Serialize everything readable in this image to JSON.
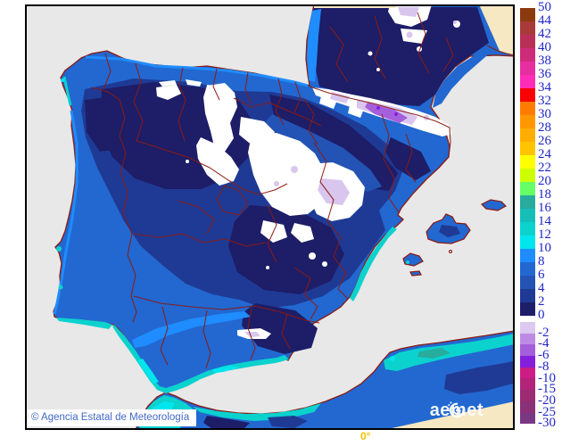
{
  "map": {
    "copyright": "© Agencia Estatal de Meteorología",
    "logo_text": "aemet",
    "longitude_label": "0°"
  },
  "colors": {
    "frame": "#000000",
    "sea": "#E8E8E8",
    "no_data": "#F6E8C2",
    "boundary": "#8C1A10",
    "scale_label": "#2025C8",
    "copyright_text": "#4169C8",
    "copyright_bg": "#FFFFFF",
    "lon_label": "#F0C000",
    "logo_white": "#FFFFFF",
    "t0_2": "#1D1D68",
    "t2_4": "#1F3A94",
    "t4_6": "#2353B4",
    "t6_8": "#2268D0",
    "t8_10": "#1F8CFF",
    "t10_12": "#00E6EE",
    "t12_14": "#0CD2CE",
    "t14_16": "#16BEBA",
    "t16_18": "#28AC9E",
    "m2_4": "#D9C6EE",
    "m4_6": "#BC8BE4",
    "m6_8": "#A55EDC",
    "m8_10": "#8420DC"
  },
  "colorbar": {
    "upper_labels": [
      "50",
      "44",
      "42",
      "40",
      "38",
      "36",
      "34",
      "32",
      "30",
      "28",
      "26",
      "24",
      "22",
      "20",
      "18",
      "16",
      "14",
      "12",
      "10",
      "8",
      "6",
      "4",
      "2",
      "0"
    ],
    "upper_colors": [
      "#8B3A0E",
      "#A83A3A",
      "#B83058",
      "#CC2C7A",
      "#E62EA0",
      "#FF2CB8",
      "#FA0000",
      "#FF7C00",
      "#FF9800",
      "#FFAE00",
      "#FFC400",
      "#FFFF00",
      "#CCFF00",
      "#66FF66",
      "#28AC9E",
      "#16BEBA",
      "#0CD2CE",
      "#00E6EE",
      "#1F8CFF",
      "#2268D0",
      "#2353B4",
      "#1F3A94",
      "#1D1D68"
    ],
    "lower_labels": [
      "-2",
      "-4",
      "-6",
      "-8",
      "-10",
      "-15",
      "-20",
      "-25",
      "-30"
    ],
    "lower_colors": [
      "#DCC8F0",
      "#BC8BE4",
      "#A55EDC",
      "#8420DC",
      "#CE1C87",
      "#B2247A",
      "#9C2B74",
      "#8A3178",
      "#7A3884"
    ]
  }
}
